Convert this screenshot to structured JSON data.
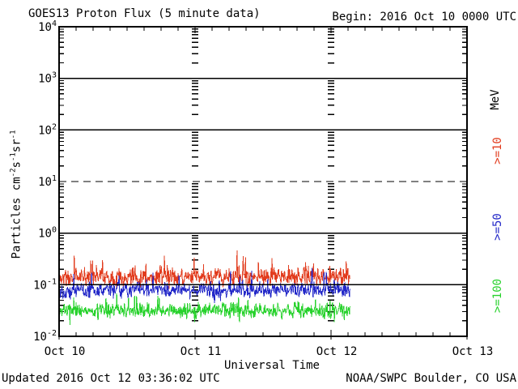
{
  "header": {
    "title": "GOES13 Proton Flux (5 minute data)",
    "begin": "Begin: 2016 Oct 10 0000 UTC"
  },
  "footer": {
    "updated": "Updated 2016 Oct 12 03:36:02 UTC",
    "credit": "NOAA/SWPC Boulder, CO USA"
  },
  "axes": {
    "x_title": "Universal Time",
    "x_tick_labels": [
      "Oct 10",
      "Oct 11",
      "Oct 12",
      "Oct 13"
    ],
    "y_tick_exponents": [
      4,
      3,
      2,
      1,
      0,
      -1,
      -2
    ],
    "y_unit": {
      "prefix": "Particles  cm",
      "exp1": "-2",
      "mid1": "s",
      "exp2": "-1",
      "mid2": "sr",
      "exp3": "-1"
    },
    "right_unit": "MeV"
  },
  "chart_data": {
    "type": "line",
    "title": "GOES13 Proton Flux (5 minute data)",
    "xlabel": "Universal Time",
    "ylabel": "Particles cm^-2 s^-1 sr^-1",
    "begin_label": "Begin: 2016 Oct 10 0000 UTC",
    "x_days": [
      "Oct 10",
      "Oct 11",
      "Oct 12",
      "Oct 13"
    ],
    "x_span_days": 3,
    "data_span_days": 2.143,
    "cadence_minutes": 5,
    "y_scale": "log",
    "y_log_range": [
      -2,
      4
    ],
    "y_tick_values": [
      10000,
      1000,
      100,
      10,
      1,
      0.1,
      0.01
    ],
    "gridlines_solid_at_log": [
      3,
      2,
      0,
      -1
    ],
    "gridlines_dashed_at_log": [
      1
    ],
    "day_boundary_tick_columns": [
      "Oct 11",
      "Oct 12"
    ],
    "legend_position": "right-rotated",
    "series": [
      {
        "name": ">=10",
        "unit": "MeV",
        "color": "#e23c1e",
        "approx_log10_mean": -0.85,
        "approx_log10_jitter": 0.2,
        "approx_flux_range": [
          0.09,
          0.45
        ],
        "seed": 11
      },
      {
        "name": ">=50",
        "unit": "MeV",
        "color": "#2328c8",
        "approx_log10_mean": -1.1,
        "approx_log10_jitter": 0.18,
        "approx_flux_range": [
          0.05,
          0.18
        ],
        "seed": 22
      },
      {
        "name": ">=100",
        "unit": "MeV",
        "color": "#28d22d",
        "approx_log10_mean": -1.5,
        "approx_log10_jitter": 0.17,
        "approx_flux_range": [
          0.02,
          0.09
        ],
        "seed": 33
      }
    ]
  }
}
